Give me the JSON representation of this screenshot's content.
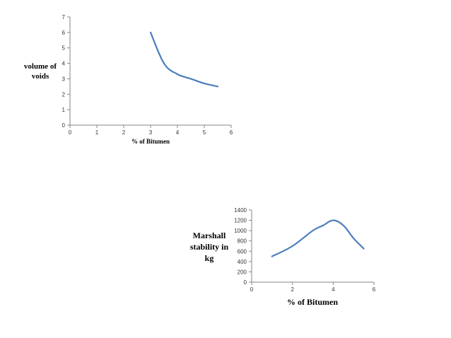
{
  "chart_data": [
    {
      "type": "line",
      "title": "",
      "xlabel": "% of Bitumen",
      "ylabel_lines": [
        "volume of",
        "voids"
      ],
      "xlim": [
        0,
        6
      ],
      "ylim": [
        0,
        7
      ],
      "xticks": [
        "0",
        "1",
        "2",
        "3",
        "4",
        "5",
        "6"
      ],
      "yticks": [
        "0",
        "1",
        "2",
        "3",
        "4",
        "5",
        "6",
        "7"
      ],
      "grid": false,
      "legend": "none",
      "series": [
        {
          "x": [
            3,
            3.5,
            4,
            4.5,
            5,
            5.5
          ],
          "y": [
            6.0,
            4.0,
            3.3,
            3.0,
            2.7,
            2.5
          ],
          "color": "#4a7ebb"
        }
      ]
    },
    {
      "type": "line",
      "title": "",
      "xlabel": "% of Bitumen",
      "ylabel_lines": [
        "Marshall",
        "stability in",
        "kg"
      ],
      "xlim": [
        0,
        6
      ],
      "ylim": [
        0,
        1400
      ],
      "xticks": [
        "0",
        "2",
        "4",
        "6"
      ],
      "yticks": [
        "0",
        "200",
        "400",
        "600",
        "800",
        "1000",
        "1200",
        "1400"
      ],
      "grid": false,
      "legend": "none",
      "series": [
        {
          "x": [
            1,
            2,
            3,
            3.5,
            4,
            4.5,
            5,
            5.5
          ],
          "y": [
            500,
            700,
            1000,
            1100,
            1200,
            1100,
            850,
            650
          ],
          "color": "#4a7ebb"
        }
      ]
    }
  ]
}
